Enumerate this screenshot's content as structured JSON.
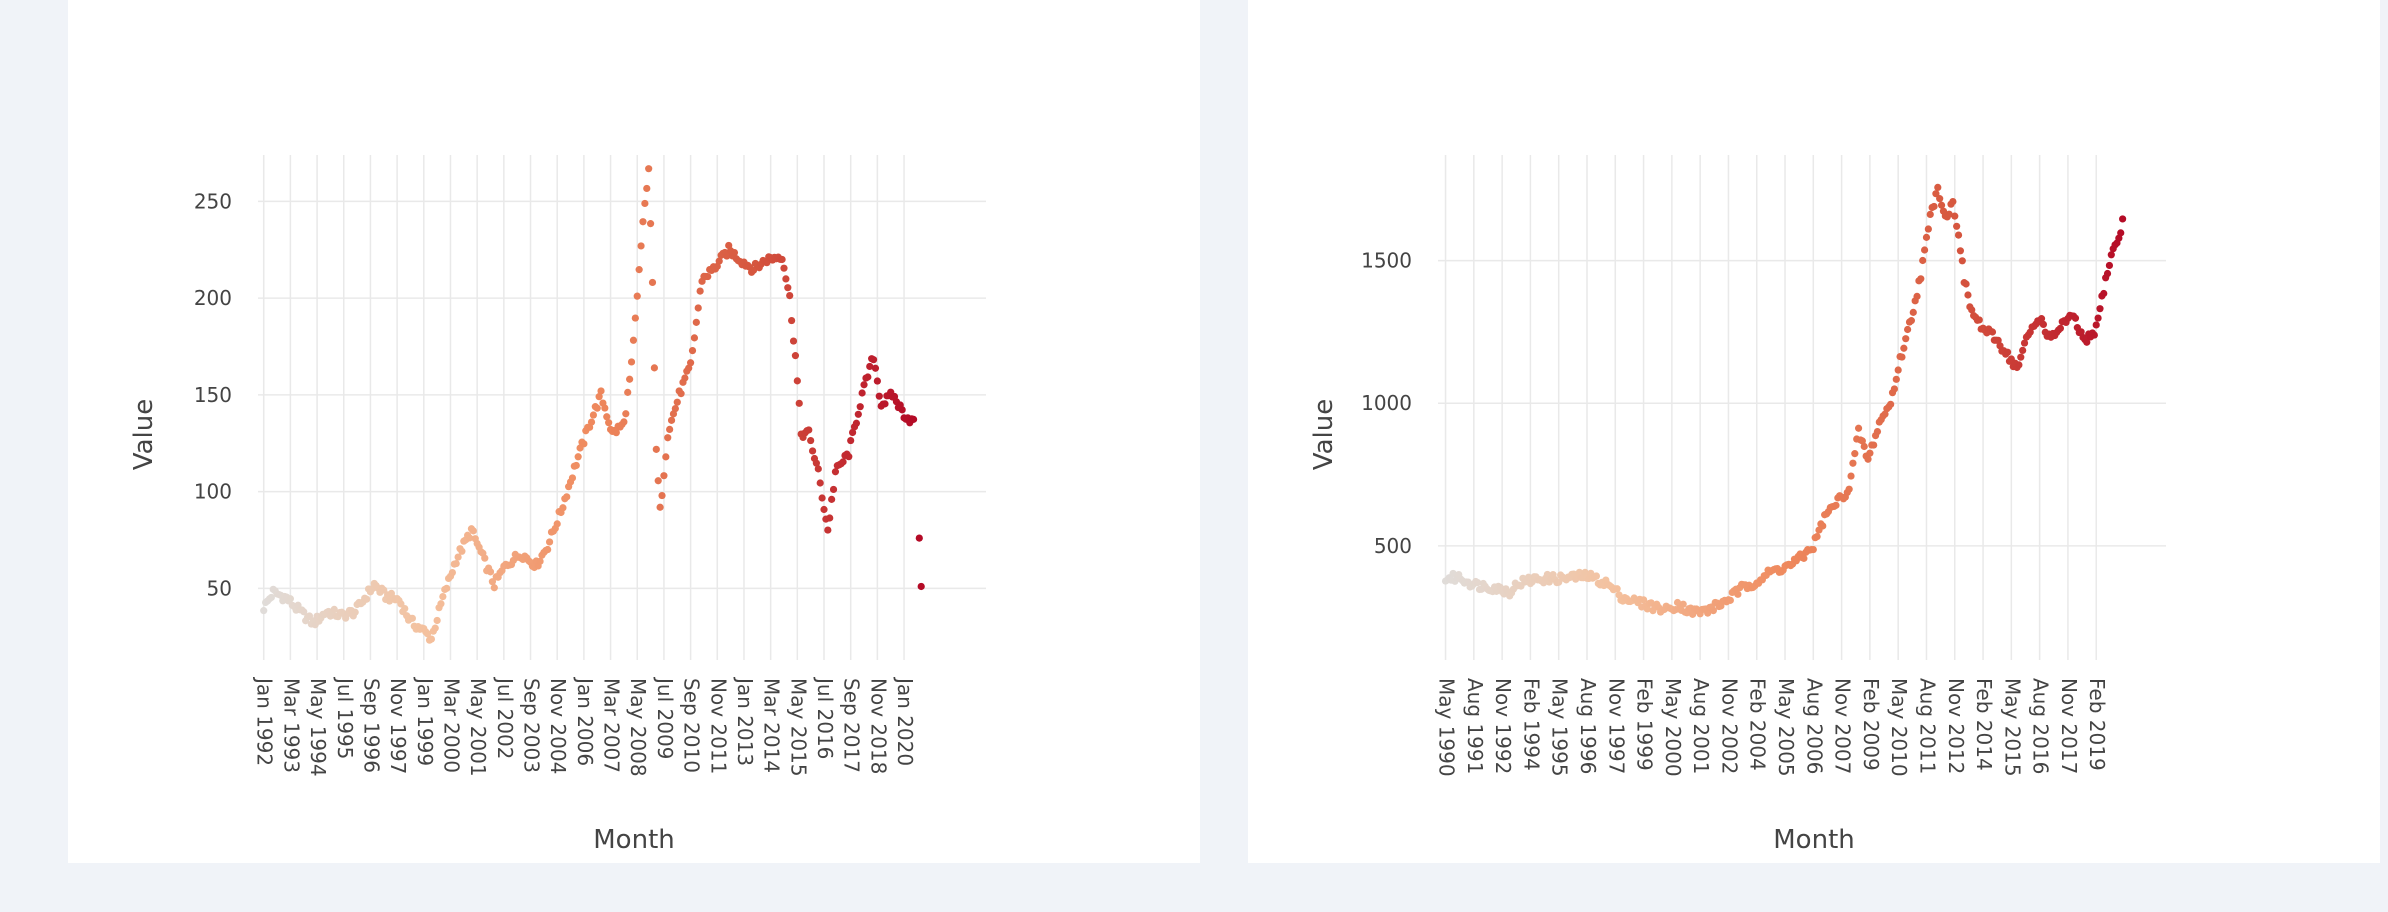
{
  "chart_data": [
    {
      "type": "scatter",
      "xlabel": "Month",
      "ylabel": "Value",
      "x_ticks": [
        "Jan 1992",
        "Mar 1993",
        "May 1994",
        "Jul 1995",
        "Sep 1996",
        "Nov 1997",
        "Jan 1999",
        "Mar 2000",
        "May 2001",
        "Jul 2002",
        "Sep 2003",
        "Nov 2004",
        "Jan 2006",
        "Mar 2007",
        "May 2008",
        "Jul 2009",
        "Sep 2010",
        "Nov 2011",
        "Jan 2013",
        "Mar 2014",
        "May 2015",
        "Jul 2016",
        "Sep 2017",
        "Nov 2018",
        "Jan 2020"
      ],
      "x_range": [
        "1991-10",
        "2023-08"
      ],
      "y_ticks": [
        50,
        100,
        150,
        200,
        250
      ],
      "ylim": [
        13,
        274
      ],
      "grid": true,
      "color_scale": [
        "#e0dcd9",
        "#f4c19e",
        "#ef8a5e",
        "#d6573f",
        "#b40a26"
      ],
      "anchors": [
        [
          "1992-01",
          40
        ],
        [
          "1992-06",
          48
        ],
        [
          "1993-01",
          45
        ],
        [
          "1993-08",
          38
        ],
        [
          "1994-03",
          32
        ],
        [
          "1994-10",
          38
        ],
        [
          "1995-06",
          36
        ],
        [
          "1996-01",
          38
        ],
        [
          "1996-06",
          45
        ],
        [
          "1996-11",
          52
        ],
        [
          "1997-05",
          46
        ],
        [
          "1997-12",
          44
        ],
        [
          "1998-06",
          33
        ],
        [
          "1999-01",
          28
        ],
        [
          "1999-05",
          24
        ],
        [
          "1999-11",
          45
        ],
        [
          "2000-06",
          65
        ],
        [
          "2001-02",
          80
        ],
        [
          "2001-08",
          66
        ],
        [
          "2002-02",
          52
        ],
        [
          "2002-08",
          62
        ],
        [
          "2003-04",
          68
        ],
        [
          "2003-12",
          62
        ],
        [
          "2004-06",
          72
        ],
        [
          "2005-01",
          90
        ],
        [
          "2005-09",
          115
        ],
        [
          "2006-04",
          135
        ],
        [
          "2006-10",
          150
        ],
        [
          "2007-04",
          130
        ],
        [
          "2007-10",
          135
        ],
        [
          "2008-02",
          165
        ],
        [
          "2008-05",
          200
        ],
        [
          "2008-08",
          240
        ],
        [
          "2008-11",
          265
        ],
        [
          "2009-01",
          210
        ],
        [
          "2009-03",
          120
        ],
        [
          "2009-05",
          90
        ],
        [
          "2009-09",
          130
        ],
        [
          "2010-03",
          150
        ],
        [
          "2010-09",
          165
        ],
        [
          "2011-03",
          210
        ],
        [
          "2011-09",
          215
        ],
        [
          "2012-05",
          225
        ],
        [
          "2012-11",
          220
        ],
        [
          "2013-06",
          215
        ],
        [
          "2014-01",
          220
        ],
        [
          "2014-09",
          222
        ],
        [
          "2015-01",
          200
        ],
        [
          "2015-04",
          170
        ],
        [
          "2015-07",
          130
        ],
        [
          "2015-11",
          130
        ],
        [
          "2016-04",
          110
        ],
        [
          "2016-09",
          80
        ],
        [
          "2017-01",
          110
        ],
        [
          "2017-08",
          120
        ],
        [
          "2018-03",
          150
        ],
        [
          "2018-09",
          170
        ],
        [
          "2019-01",
          145
        ],
        [
          "2019-07",
          150
        ],
        [
          "2020-01",
          140
        ],
        [
          "2020-07",
          135
        ]
      ],
      "outliers": [
        [
          "2020-09",
          76
        ],
        [
          "2020-10",
          51
        ]
      ]
    },
    {
      "type": "scatter",
      "xlabel": "Month",
      "ylabel": "Value",
      "x_ticks": [
        "May 1990",
        "Aug 1991",
        "Nov 1992",
        "Feb 1994",
        "May 1995",
        "Aug 1996",
        "Nov 1997",
        "Feb 1999",
        "May 2000",
        "Aug 2001",
        "Nov 2002",
        "Feb 2004",
        "May 2005",
        "Aug 2006",
        "Nov 2007",
        "Feb 2009",
        "May 2010",
        "Aug 2011",
        "Nov 2012",
        "Feb 2014",
        "May 2015",
        "Aug 2016",
        "Nov 2017",
        "Feb 2019"
      ],
      "x_range": [
        "1990-01",
        "2022-03"
      ],
      "y_ticks": [
        500,
        1000,
        1500
      ],
      "ylim": [
        100,
        1870
      ],
      "grid": true,
      "color_scale": [
        "#e0dcd9",
        "#f4c19e",
        "#ef8a5e",
        "#d6573f",
        "#b40a26"
      ],
      "anchors": [
        [
          "1990-05",
          385
        ],
        [
          "1990-12",
          390
        ],
        [
          "1991-08",
          365
        ],
        [
          "1992-06",
          355
        ],
        [
          "1993-03",
          340
        ],
        [
          "1993-08",
          370
        ],
        [
          "1994-06",
          385
        ],
        [
          "1995-06",
          385
        ],
        [
          "1996-01",
          390
        ],
        [
          "1996-08",
          395
        ],
        [
          "1997-06",
          370
        ],
        [
          "1998-03",
          320
        ],
        [
          "1998-12",
          300
        ],
        [
          "1999-06",
          290
        ],
        [
          "2000-02",
          275
        ],
        [
          "2000-08",
          295
        ],
        [
          "2001-03",
          270
        ],
        [
          "2001-10",
          270
        ],
        [
          "2002-08",
          300
        ],
        [
          "2003-06",
          350
        ],
        [
          "2004-03",
          380
        ],
        [
          "2004-10",
          410
        ],
        [
          "2005-07",
          430
        ],
        [
          "2006-02",
          460
        ],
        [
          "2006-08",
          500
        ],
        [
          "2007-02",
          600
        ],
        [
          "2007-08",
          650
        ],
        [
          "2008-03",
          700
        ],
        [
          "2008-08",
          900
        ],
        [
          "2009-01",
          800
        ],
        [
          "2009-07",
          930
        ],
        [
          "2010-01",
          1000
        ],
        [
          "2010-06",
          1150
        ],
        [
          "2010-12",
          1300
        ],
        [
          "2011-05",
          1450
        ],
        [
          "2011-10",
          1650
        ],
        [
          "2012-02",
          1760
        ],
        [
          "2012-06",
          1650
        ],
        [
          "2012-10",
          1700
        ],
        [
          "2013-01",
          1600
        ],
        [
          "2013-04",
          1430
        ],
        [
          "2013-08",
          1320
        ],
        [
          "2014-02",
          1260
        ],
        [
          "2014-08",
          1230
        ],
        [
          "2015-02",
          1180
        ],
        [
          "2015-08",
          1120
        ],
        [
          "2016-02",
          1240
        ],
        [
          "2016-08",
          1300
        ],
        [
          "2017-02",
          1220
        ],
        [
          "2017-08",
          1280
        ],
        [
          "2018-02",
          1300
        ],
        [
          "2018-08",
          1210
        ],
        [
          "2019-02",
          1260
        ],
        [
          "2019-06",
          1400
        ],
        [
          "2019-10",
          1520
        ],
        [
          "2020-02",
          1580
        ],
        [
          "2020-05",
          1660
        ]
      ],
      "outliers": []
    }
  ]
}
